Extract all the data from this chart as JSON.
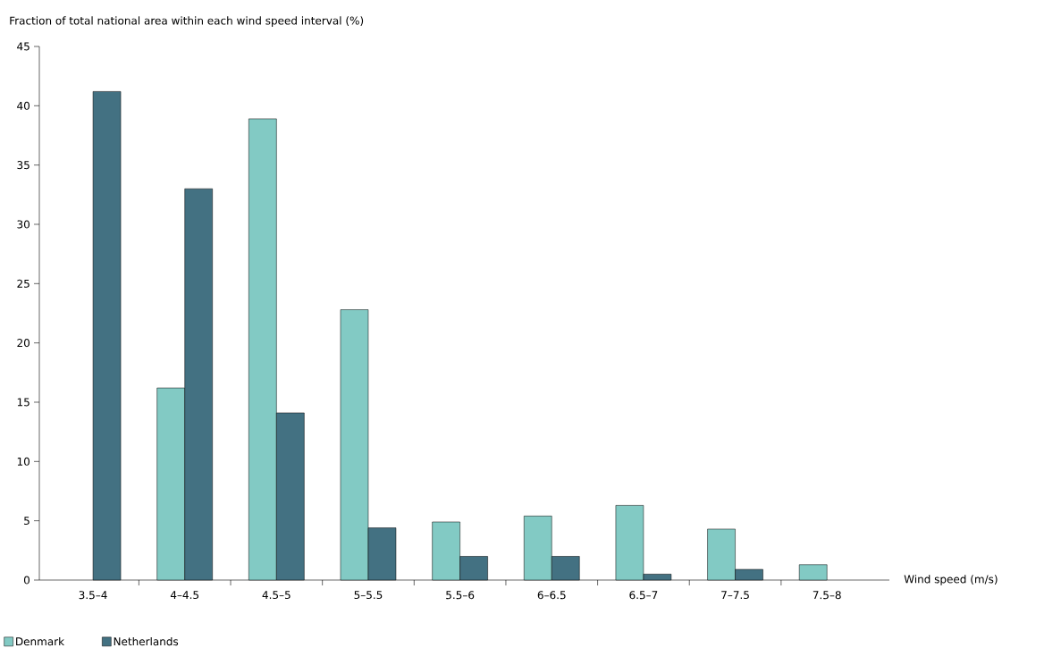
{
  "chart_data": {
    "type": "bar",
    "ylabel": "Fraction of total national area within each wind speed interval (%)",
    "xlabel": "Wind speed (m/s)",
    "categories": [
      "3.5–4",
      "4–4.5",
      "4.5–5",
      "5–5.5",
      "5.5–6",
      "6–6.5",
      "6.5–7",
      "7–7.5",
      "7.5–8"
    ],
    "series": [
      {
        "name": "Denmark",
        "color": "#82cac4",
        "values": [
          null,
          16.2,
          38.9,
          22.8,
          4.9,
          5.4,
          6.3,
          4.3,
          1.3
        ]
      },
      {
        "name": "Netherlands",
        "color": "#437182",
        "values": [
          41.2,
          33.0,
          14.1,
          4.4,
          2.0,
          2.0,
          0.5,
          0.9,
          null
        ]
      }
    ],
    "ylim": [
      0,
      45
    ],
    "yticks": [
      0,
      5,
      10,
      15,
      20,
      25,
      30,
      35,
      40,
      45
    ],
    "legend": "bottom"
  }
}
